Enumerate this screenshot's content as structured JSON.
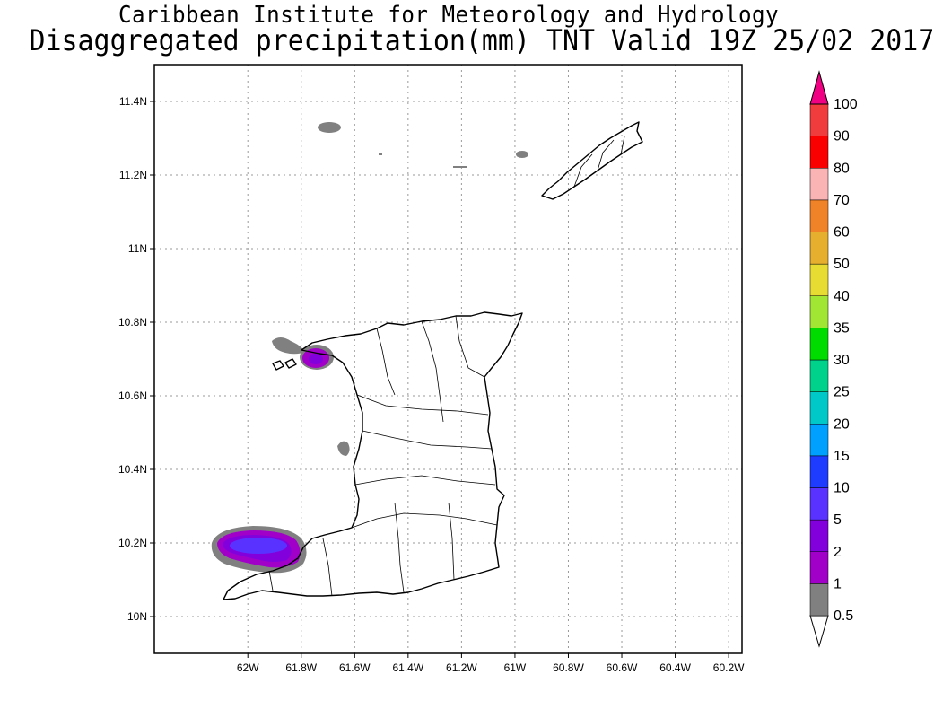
{
  "title": {
    "line1": "Caribbean Institute for Meteorology and Hydrology",
    "line2": "Disaggregated precipitation(mm) TNT Valid 19Z 25/02 2017"
  },
  "map": {
    "lon_range": [
      -62.35,
      -60.15
    ],
    "lat_range": [
      9.9,
      11.5
    ],
    "lon_ticks": [
      {
        "value": -62.0,
        "label": "62W"
      },
      {
        "value": -61.8,
        "label": "61.8W"
      },
      {
        "value": -61.6,
        "label": "61.6W"
      },
      {
        "value": -61.4,
        "label": "61.4W"
      },
      {
        "value": -61.2,
        "label": "61.2W"
      },
      {
        "value": -61.0,
        "label": "61W"
      },
      {
        "value": -60.8,
        "label": "60.8W"
      },
      {
        "value": -60.6,
        "label": "60.6W"
      },
      {
        "value": -60.4,
        "label": "60.4W"
      },
      {
        "value": -60.2,
        "label": "60.2W"
      }
    ],
    "lat_ticks": [
      {
        "value": 10.0,
        "label": "10N"
      },
      {
        "value": 10.2,
        "label": "10.2N"
      },
      {
        "value": 10.4,
        "label": "10.4N"
      },
      {
        "value": 10.6,
        "label": "10.6N"
      },
      {
        "value": 10.8,
        "label": "10.8N"
      },
      {
        "value": 11.0,
        "label": "11N"
      },
      {
        "value": 11.2,
        "label": "11.2N"
      },
      {
        "value": 11.4,
        "label": "11.4N"
      }
    ],
    "grid": true
  },
  "colorbar": {
    "labels": [
      "0.5",
      "1",
      "2",
      "5",
      "10",
      "15",
      "20",
      "25",
      "30",
      "35",
      "40",
      "50",
      "60",
      "70",
      "80",
      "90",
      "100"
    ],
    "colors": [
      "#808080",
      "#a000c8",
      "#8200dc",
      "#5a32ff",
      "#1e3cff",
      "#00a0ff",
      "#00c8c8",
      "#00d28c",
      "#00dc00",
      "#a0e632",
      "#e6dc32",
      "#e6af2d",
      "#f08228",
      "#fab4b4",
      "#fa0000",
      "#f03c3c",
      "#f00082"
    ]
  }
}
